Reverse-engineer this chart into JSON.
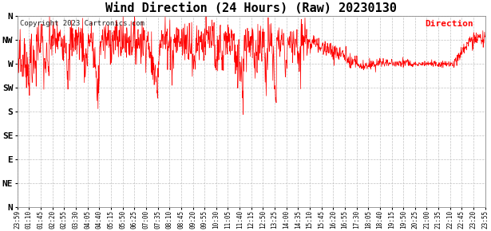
{
  "title": "Wind Direction (24 Hours) (Raw) 20230130",
  "copyright": "Copyright 2023 Cartronics.com",
  "legend_label": "Direction",
  "legend_color": "#ff0000",
  "line_color": "#ff0000",
  "background_color": "#ffffff",
  "grid_color": "#bbbbbb",
  "ytick_labels": [
    "N",
    "NW",
    "W",
    "SW",
    "S",
    "SE",
    "E",
    "NE",
    "N"
  ],
  "ytick_values": [
    360,
    315,
    270,
    225,
    180,
    135,
    90,
    45,
    0
  ],
  "ylim": [
    0,
    360
  ],
  "title_fontsize": 11,
  "xtick_labels": [
    "23:59",
    "01:10",
    "01:45",
    "02:20",
    "02:55",
    "03:30",
    "04:05",
    "04:40",
    "05:15",
    "05:50",
    "06:25",
    "07:00",
    "07:35",
    "08:10",
    "08:45",
    "09:20",
    "09:55",
    "10:30",
    "11:05",
    "11:40",
    "12:15",
    "12:50",
    "13:25",
    "14:00",
    "14:35",
    "15:10",
    "15:45",
    "16:20",
    "16:55",
    "17:30",
    "18:05",
    "18:40",
    "19:15",
    "19:50",
    "20:25",
    "21:00",
    "21:35",
    "22:10",
    "22:45",
    "23:20",
    "23:55"
  ]
}
